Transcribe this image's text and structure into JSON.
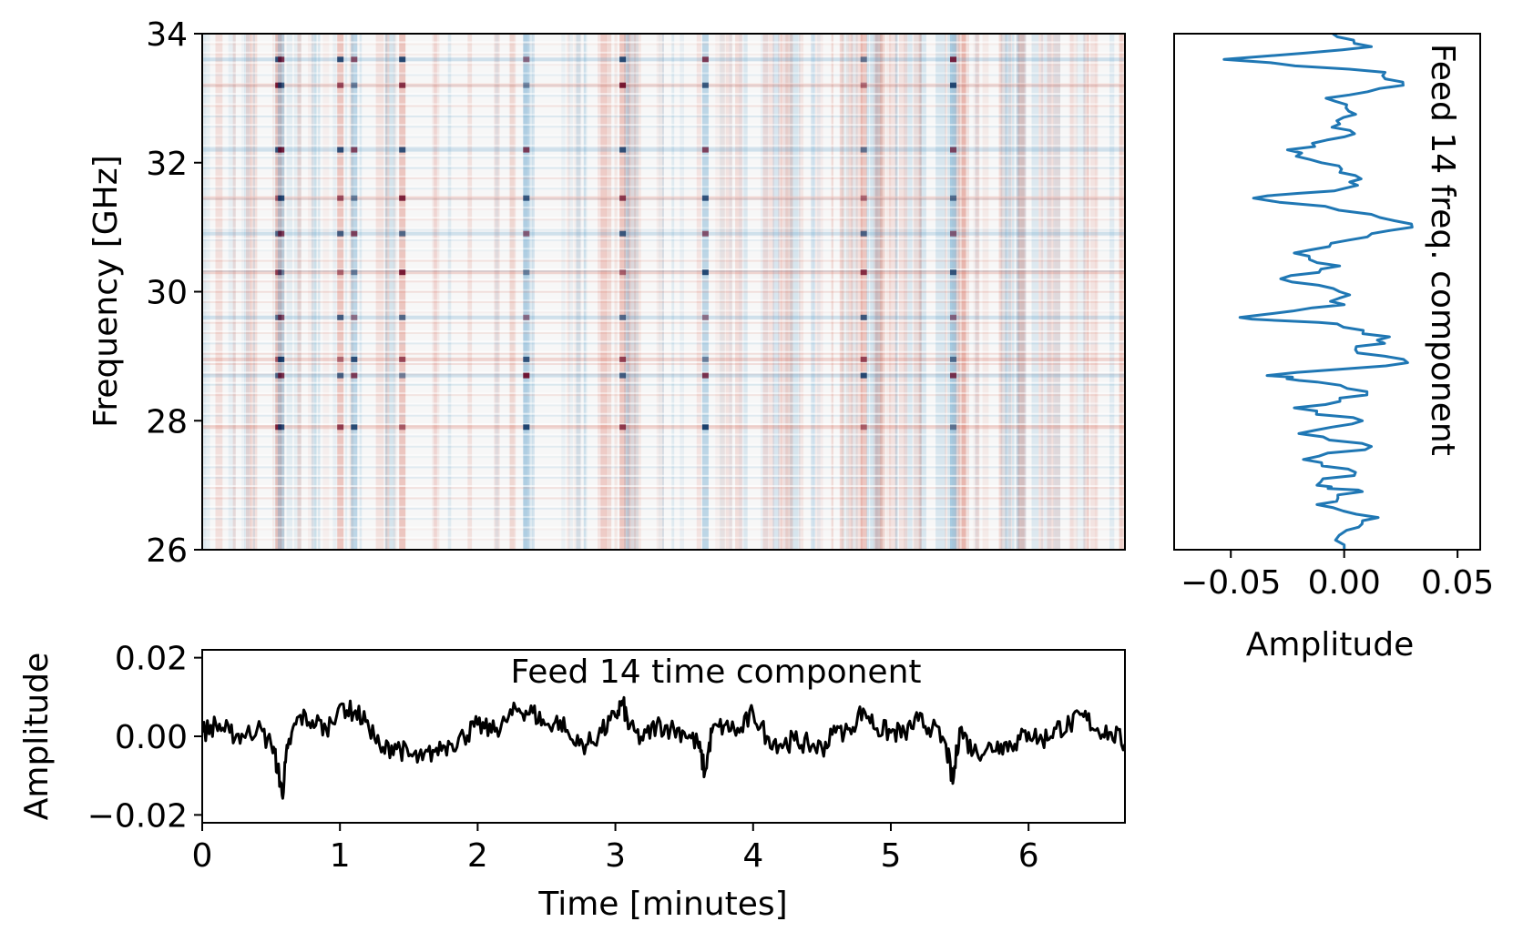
{
  "chart_data": [
    {
      "panel": "heatmap",
      "type": "heatmap",
      "ylabel": "Frequency [GHz]",
      "xlabel": "",
      "xlim": [
        0,
        6.7
      ],
      "ylim": [
        26,
        34
      ],
      "yticks": [
        26,
        28,
        30,
        32,
        34
      ],
      "ytick_labels": [
        "26",
        "28",
        "30",
        "32",
        "34"
      ],
      "colormap": "RdBu_r",
      "low_color": "#053061",
      "mid_color": "#f7f7f7",
      "high_color": "#67001f",
      "strong_time_columns_minutes": [
        0.55,
        0.57,
        1.0,
        1.1,
        1.45,
        2.35,
        3.05,
        3.65,
        4.8,
        5.45
      ],
      "strong_frequency_rows_ghz": [
        33.6,
        33.2,
        32.2,
        31.45,
        30.9,
        30.3,
        29.6,
        28.95,
        28.7,
        27.9
      ]
    },
    {
      "panel": "time-component",
      "type": "line",
      "title": "Feed 14 time component",
      "xlabel": "Time [minutes]",
      "ylabel": "Amplitude",
      "xlim": [
        0,
        6.7
      ],
      "ylim": [
        -0.022,
        0.022
      ],
      "xticks": [
        0,
        1,
        2,
        3,
        4,
        5,
        6
      ],
      "xtick_labels": [
        "0",
        "1",
        "2",
        "3",
        "4",
        "5",
        "6"
      ],
      "yticks": [
        -0.02,
        0.0,
        0.02
      ],
      "ytick_labels": [
        "−0.02",
        "0.00",
        "0.02"
      ],
      "color": "#000000",
      "x": [
        0,
        0.1,
        0.2,
        0.3,
        0.4,
        0.5,
        0.55,
        0.58,
        0.62,
        0.7,
        0.8,
        0.9,
        1.0,
        1.1,
        1.2,
        1.3,
        1.4,
        1.5,
        1.6,
        1.7,
        1.8,
        1.9,
        2.0,
        2.1,
        2.2,
        2.3,
        2.4,
        2.5,
        2.6,
        2.7,
        2.8,
        2.9,
        3.0,
        3.05,
        3.1,
        3.2,
        3.3,
        3.4,
        3.5,
        3.6,
        3.65,
        3.7,
        3.8,
        3.9,
        4.0,
        4.1,
        4.2,
        4.3,
        4.4,
        4.5,
        4.6,
        4.7,
        4.8,
        4.9,
        5.0,
        5.1,
        5.2,
        5.3,
        5.4,
        5.45,
        5.5,
        5.6,
        5.7,
        5.8,
        5.9,
        6.0,
        6.1,
        6.2,
        6.3,
        6.4,
        6.5,
        6.6,
        6.7
      ],
      "y": [
        0.001,
        0.003,
        0.001,
        0.0,
        0.002,
        -0.002,
        -0.008,
        -0.015,
        -0.003,
        0.005,
        0.004,
        0.002,
        0.008,
        0.006,
        0.004,
        -0.004,
        -0.002,
        -0.005,
        -0.006,
        -0.003,
        -0.002,
        0.0,
        0.003,
        0.001,
        0.004,
        0.007,
        0.006,
        0.003,
        0.004,
        -0.002,
        -0.002,
        0.001,
        0.005,
        0.009,
        0.002,
        -0.001,
        0.003,
        0.002,
        0.001,
        -0.002,
        -0.009,
        0.001,
        0.003,
        0.001,
        0.006,
        0.0,
        -0.002,
        -0.001,
        -0.002,
        -0.003,
        0.001,
        0.002,
        0.007,
        0.002,
        0.001,
        0.001,
        0.004,
        0.002,
        -0.002,
        -0.012,
        0.002,
        -0.004,
        -0.003,
        -0.002,
        -0.002,
        0.001,
        -0.001,
        0.002,
        0.003,
        0.005,
        0.002,
        0.001,
        -0.002
      ]
    },
    {
      "panel": "freq-component",
      "type": "line",
      "title": "Feed 14 freq. component",
      "xlabel": "Amplitude",
      "ylabel": "",
      "xlim": [
        -0.075,
        0.06
      ],
      "ylim": [
        26,
        34
      ],
      "xticks": [
        -0.05,
        0.0,
        0.05
      ],
      "xtick_labels": [
        "−0.05",
        "0.00",
        "0.05"
      ],
      "color": "#1f77b4",
      "freq": [
        26.0,
        26.3,
        26.5,
        26.7,
        26.9,
        27.0,
        27.2,
        27.4,
        27.6,
        27.8,
        28.0,
        28.2,
        28.4,
        28.6,
        28.7,
        28.9,
        29.1,
        29.3,
        29.5,
        29.6,
        29.8,
        30.0,
        30.2,
        30.4,
        30.6,
        30.8,
        31.0,
        31.2,
        31.45,
        31.6,
        31.8,
        32.0,
        32.2,
        32.4,
        32.6,
        32.8,
        33.0,
        33.2,
        33.4,
        33.6,
        33.8,
        34.0
      ],
      "amplitude": [
        0.0,
        0.001,
        0.015,
        -0.012,
        0.008,
        -0.012,
        0.005,
        -0.018,
        0.012,
        -0.02,
        0.008,
        -0.022,
        0.01,
        -0.012,
        -0.034,
        0.028,
        0.005,
        0.02,
        -0.003,
        -0.046,
        0.0,
        -0.002,
        -0.028,
        -0.002,
        -0.022,
        0.002,
        0.03,
        0.012,
        -0.04,
        0.0,
        0.005,
        -0.01,
        -0.025,
        0.0,
        -0.002,
        0.002,
        -0.008,
        0.026,
        0.018,
        -0.053,
        0.012,
        -0.005
      ]
    }
  ]
}
